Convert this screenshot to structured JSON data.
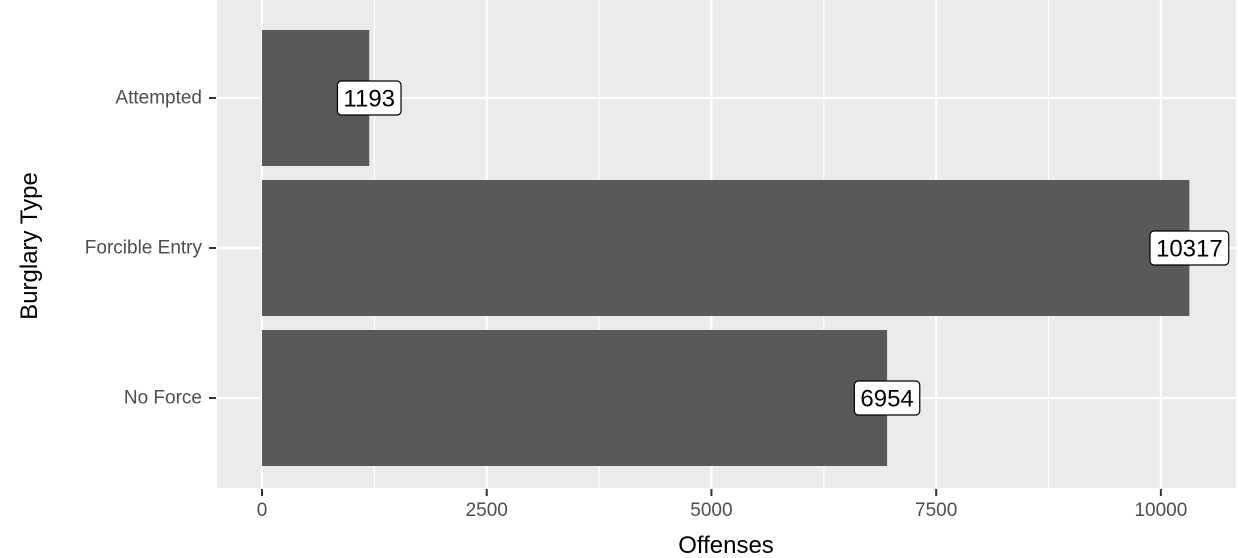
{
  "chart_data": {
    "type": "bar",
    "orientation": "horizontal",
    "categories": [
      "Attempted",
      "Forcible Entry",
      "No Force"
    ],
    "values": [
      1193,
      10317,
      6954
    ],
    "data_labels": [
      "1193",
      "10317",
      "6954"
    ],
    "xlabel": "Offenses",
    "ylabel": "Burglary Type",
    "xlim": [
      -500,
      10800
    ],
    "x_ticks": [
      0,
      2500,
      5000,
      7500,
      10000
    ],
    "x_tick_labels": [
      "0",
      "2500",
      "5000",
      "7500",
      "10000"
    ],
    "grid": true,
    "legend": "none",
    "colors": {
      "panel_background": "#ebebeb",
      "grid_line": "#ffffff",
      "bar_fill": "#595959",
      "tick_label": "#4d4d4d",
      "label_fill": "#ffffff",
      "label_border": "#000000"
    }
  }
}
